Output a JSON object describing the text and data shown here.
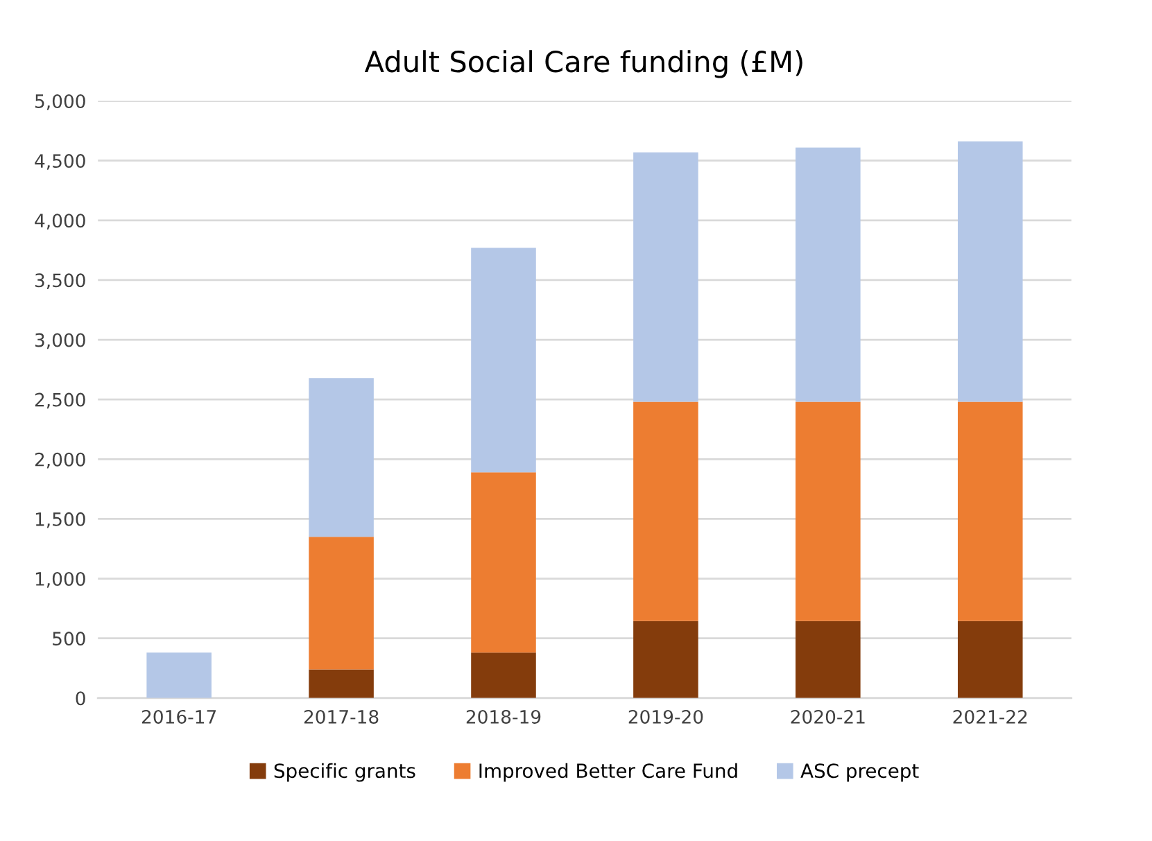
{
  "chart_data": {
    "type": "bar",
    "title": "Adult Social Care funding (£M)",
    "stacked": true,
    "categories": [
      "2016-17",
      "2017-18",
      "2018-19",
      "2019-20",
      "2020-21",
      "2021-22"
    ],
    "series": [
      {
        "name": "Specific grants",
        "color": "#843c0c",
        "values": [
          0,
          240,
          380,
          645,
          645,
          645
        ]
      },
      {
        "name": "Improved Better Care Fund",
        "color": "#ed7d31",
        "values": [
          0,
          1110,
          1510,
          1835,
          1835,
          1835
        ]
      },
      {
        "name": "ASC precept",
        "color": "#b4c7e7",
        "values": [
          380,
          1330,
          1880,
          2090,
          2130,
          2180
        ]
      }
    ],
    "ylim": [
      0,
      5000
    ],
    "yticks": [
      {
        "value": 0,
        "label": "0"
      },
      {
        "value": 500,
        "label": "500"
      },
      {
        "value": 1000,
        "label": "1,000"
      },
      {
        "value": 1500,
        "label": "1,500"
      },
      {
        "value": 2000,
        "label": "2,000"
      },
      {
        "value": 2500,
        "label": "2,500"
      },
      {
        "value": 3000,
        "label": "3,000"
      },
      {
        "value": 3500,
        "label": "3,500"
      },
      {
        "value": 4000,
        "label": "4,000"
      },
      {
        "value": 4500,
        "label": "4,500"
      },
      {
        "value": 5000,
        "label": "5,000"
      }
    ],
    "grid": "y",
    "legend": "bottom"
  }
}
